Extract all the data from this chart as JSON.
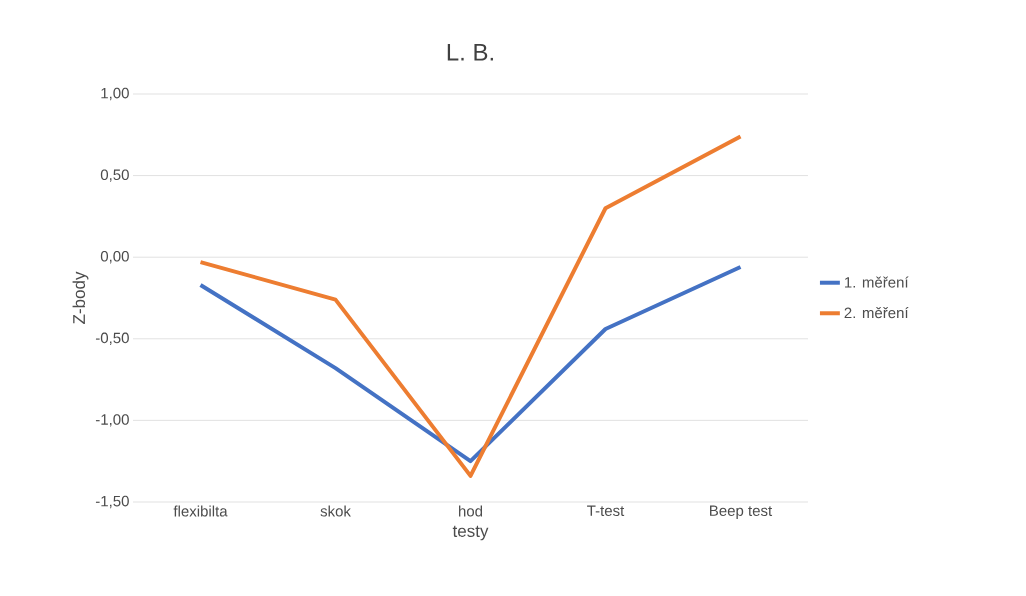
{
  "chart_data": {
    "type": "line",
    "title": "L. B.",
    "xlabel": "testy",
    "ylabel": "Z-body",
    "categories": [
      "flexibilta",
      "skok",
      "hod",
      "T-test",
      "Beep test"
    ],
    "series": [
      {
        "name": "1. měření",
        "color": "#4472c4",
        "values": [
          -0.17,
          -0.68,
          -1.25,
          -0.44,
          -0.06
        ]
      },
      {
        "name": "2. měření",
        "color": "#ed7d31",
        "values": [
          -0.03,
          -0.26,
          -1.34,
          0.3,
          0.74
        ]
      }
    ],
    "ylim": [
      -1.5,
      1.0
    ],
    "yticks": [
      {
        "value": -1.5,
        "label": "-1,50"
      },
      {
        "value": -1.0,
        "label": "-1,00"
      },
      {
        "value": -0.5,
        "label": "-0,50"
      },
      {
        "value": 0.0,
        "label": "0,00"
      },
      {
        "value": 0.5,
        "label": "0,50"
      },
      {
        "value": 1.0,
        "label": "1,00"
      }
    ],
    "grid": "y",
    "legend": "right",
    "marker": "none",
    "line_style": "solid"
  }
}
